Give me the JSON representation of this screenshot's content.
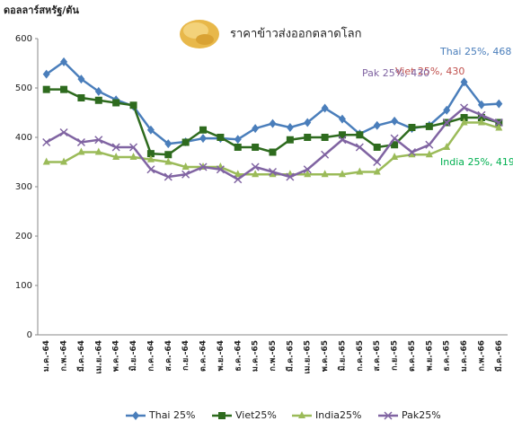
{
  "chart_data": {
    "type": "line",
    "title": "ราคาข้าวส่งออกตลาดโลก",
    "y_label": "ดอลลาร์สหรัฐ/ตัน",
    "categories": [
      "ม.ค.-64",
      "ก.พ.-64",
      "มี.ค.-64",
      "เม.ย.-64",
      "พ.ค.-64",
      "มิ.ย.-64",
      "ก.ค.-64",
      "ส.ค.-64",
      "ก.ย.-64",
      "ต.ค.-64",
      "พ.ย.-64",
      "ธ.ค.-64",
      "ม.ค.-65",
      "ก.พ.-65",
      "มี.ค.-65",
      "เม.ย.-65",
      "พ.ค.-65",
      "มิ.ย.-65",
      "ก.ค.-65",
      "ส.ค.-65",
      "ก.ย.-65",
      "ต.ค.-65",
      "พ.ย.-65",
      "ธ.ค.-65",
      "ม.ค.-66",
      "ก.พ.-66",
      "มี.ค.-66"
    ],
    "series": [
      {
        "name": "Thai 25%",
        "color": "#4a7ebb",
        "marker": "diamond",
        "values": [
          528,
          553,
          518,
          493,
          476,
          463,
          415,
          387,
          391,
          398,
          398,
          396,
          418,
          428,
          420,
          430,
          459,
          437,
          407,
          424,
          433,
          418,
          424,
          455,
          512,
          466,
          468
        ]
      },
      {
        "name": "Viet25%",
        "color": "#2e6b1e",
        "marker": "square",
        "values": [
          497,
          497,
          480,
          475,
          470,
          465,
          367,
          365,
          390,
          415,
          400,
          380,
          380,
          370,
          395,
          400,
          400,
          405,
          405,
          380,
          385,
          420,
          422,
          430,
          440,
          440,
          430
        ]
      },
      {
        "name": "India25%",
        "color": "#9bbb59",
        "marker": "triangle",
        "values": [
          350,
          350,
          370,
          370,
          360,
          360,
          355,
          350,
          340,
          340,
          340,
          325,
          325,
          325,
          325,
          325,
          325,
          325,
          330,
          330,
          360,
          365,
          365,
          380,
          430,
          430,
          419
        ]
      },
      {
        "name": "Pak25%",
        "color": "#8064a2",
        "marker": "x",
        "values": [
          390,
          410,
          390,
          395,
          380,
          380,
          335,
          320,
          325,
          340,
          335,
          315,
          340,
          330,
          320,
          335,
          365,
          395,
          380,
          350,
          398,
          370,
          385,
          430,
          460,
          445,
          430
        ]
      }
    ],
    "annotations": [
      {
        "text": "Thai 25%, 468",
        "color": "#4a7ebb"
      },
      {
        "text": "Viet 25%, 430",
        "color": "#c0504d"
      },
      {
        "text": "Pak 25%, 430",
        "color": "#8064a2"
      },
      {
        "text": "India 25%, 419",
        "color": "#00b050"
      }
    ],
    "ylim": [
      0,
      600
    ],
    "yticks": [
      0,
      100,
      200,
      300,
      400,
      500,
      600
    ],
    "grid": false
  }
}
